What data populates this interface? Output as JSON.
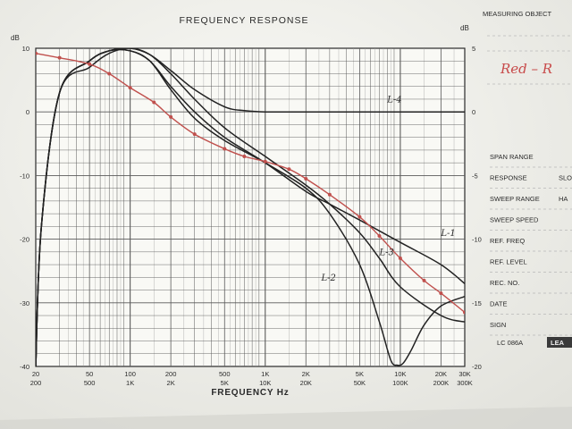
{
  "chart_data": {
    "type": "line",
    "title": "FREQUENCY RESPONSE",
    "xlabel": "FREQUENCY Hz",
    "x_scale": "log",
    "xlim": [
      20,
      30000
    ],
    "x_ticks": [
      20,
      50,
      100,
      200,
      500,
      1000,
      2000,
      5000,
      10000,
      20000,
      30000
    ],
    "x_tick_labels_top": [
      "20",
      "50",
      "100",
      "200",
      "500",
      "1K",
      "2K",
      "5K",
      "10K",
      "20K",
      "30K"
    ],
    "x_tick_labels_bottom": [
      "200",
      "500",
      "1K",
      "2K",
      "5K",
      "10K",
      "20K",
      "50K",
      "100K",
      "200K",
      "300K"
    ],
    "y_left": {
      "unit": "dB",
      "range": [
        -40,
        10
      ],
      "ticks": [
        10,
        0,
        -10,
        -20,
        -30,
        -40
      ],
      "tick_labels": [
        "10",
        "0",
        "-10",
        "-20",
        "-30",
        "-40"
      ]
    },
    "y_right": {
      "unit": "dB",
      "ticks": [
        5,
        0,
        -5,
        -10,
        -15,
        -20
      ],
      "tick_labels": [
        "5",
        "0",
        "-5",
        "-10",
        "-15",
        "-20"
      ]
    },
    "series": [
      {
        "name": "L-1",
        "color": "#222222",
        "x": [
          20,
          22,
          30,
          50,
          70,
          100,
          140,
          200,
          300,
          500,
          1000,
          2000,
          3000,
          5000,
          10000,
          20000,
          30000
        ],
        "y": [
          -40,
          -18,
          3,
          8,
          9.6,
          9.6,
          8,
          4,
          0,
          -4,
          -8,
          -12.5,
          -14.5,
          -17,
          -20.5,
          -24,
          -27
        ]
      },
      {
        "name": "L-2",
        "color": "#222222",
        "x": [
          20,
          22,
          30,
          50,
          70,
          100,
          140,
          200,
          300,
          500,
          1000,
          2000,
          3000,
          5000,
          7000,
          8500,
          9500,
          10500,
          12000,
          15000,
          20000,
          30000
        ],
        "y": [
          -40,
          -18,
          3,
          8,
          9.6,
          9.6,
          8,
          3.5,
          -1,
          -4.5,
          -8,
          -12,
          -16,
          -24,
          -33,
          -39,
          -39.8,
          -39.5,
          -37.5,
          -33.5,
          -30.5,
          -29
        ]
      },
      {
        "name": "L-3",
        "color": "#222222",
        "x": [
          20,
          22,
          30,
          50,
          70,
          100,
          140,
          200,
          300,
          500,
          1000,
          2000,
          3000,
          5000,
          7000,
          10000,
          20000,
          30000
        ],
        "y": [
          -40,
          -18,
          3,
          7,
          9.2,
          10,
          9,
          6,
          2,
          -2.5,
          -7,
          -11.5,
          -14.5,
          -19,
          -23,
          -27.5,
          -32,
          -33
        ]
      },
      {
        "name": "L-4",
        "color": "#222222",
        "x": [
          20,
          22,
          30,
          50,
          70,
          100,
          140,
          200,
          300,
          500,
          700,
          1000,
          2000,
          5000,
          10000,
          30000
        ],
        "y": [
          -40,
          -18,
          3,
          8,
          9.6,
          10,
          9,
          6.5,
          3.5,
          0.8,
          0.2,
          0,
          0,
          0,
          0,
          0
        ]
      },
      {
        "name": "",
        "color": "#c0504d",
        "markers": true,
        "x": [
          20,
          30,
          50,
          70,
          100,
          150,
          200,
          300,
          500,
          700,
          1000,
          1500,
          2000,
          3000,
          5000,
          7000,
          10000,
          15000,
          20000,
          30000
        ],
        "y": [
          9.2,
          8.5,
          7.5,
          6,
          3.8,
          1.5,
          -0.8,
          -3.5,
          -5.8,
          -7,
          -7.8,
          -9,
          -10.5,
          -13,
          -16.5,
          -19.5,
          -23,
          -26.5,
          -28.5,
          -31.5
        ]
      }
    ],
    "curve_labels": [
      {
        "text": "L-4",
        "x": 8000,
        "y": 1.5
      },
      {
        "text": "L-1",
        "x": 20000,
        "y": -19.5
      },
      {
        "text": "L-3",
        "x": 7000,
        "y": -22.5
      },
      {
        "text": "L-2",
        "x": 2600,
        "y": -26.5
      }
    ],
    "legend": "none",
    "grid": true
  },
  "side_panel": {
    "measuring_object_label": "MEASURING OBJECT",
    "handwritten_note": "Red – R",
    "fields": [
      "SPAN RANGE",
      "RESPONSE",
      "SWEEP RANGE",
      "SWEEP SPEED",
      "REF. FREQ",
      "REF. LEVEL",
      "REC. NO.",
      "DATE",
      "SIGN"
    ],
    "field_fragments": {
      "RESPONSE": "SLO",
      "SWEEP RANGE": "HA"
    },
    "form_code": "LC 086A",
    "badge_text": "LEA"
  },
  "colors": {
    "paper": "#f7f7f3",
    "grid": "#6a6a6a",
    "ink": "#222222",
    "red_ink": "#c0504d",
    "handwriting": "#c84b4b"
  }
}
